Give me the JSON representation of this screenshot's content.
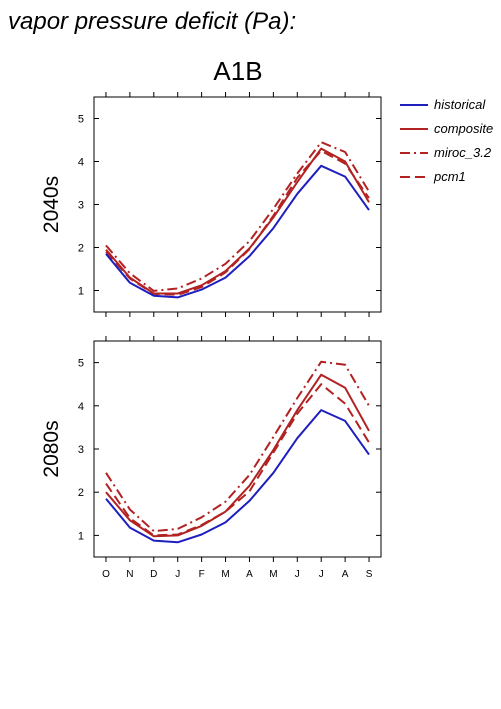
{
  "figure": {
    "title": "vapor pressure deficit (Pa):"
  },
  "chart_data": {
    "type": "line",
    "title": "A1B",
    "months": [
      "O",
      "N",
      "D",
      "J",
      "F",
      "M",
      "A",
      "M",
      "J",
      "J",
      "A",
      "S"
    ],
    "ylim": [
      0.5,
      5.5
    ],
    "yticks": [
      1,
      2,
      3,
      4,
      5
    ],
    "legend": {
      "placement": "top-right-outside",
      "entries": [
        {
          "name": "historical",
          "color": "#1f1fbf",
          "dash": "solid"
        },
        {
          "name": "composite",
          "color": "#b22222",
          "dash": "solid"
        },
        {
          "name": "miroc_3.2",
          "color": "#b22222",
          "dash": "dashdot"
        },
        {
          "name": "pcm1",
          "color": "#b22222",
          "dash": "dashed"
        }
      ]
    },
    "panels": [
      {
        "label": "2040s",
        "series": [
          {
            "name": "historical",
            "values": [
              1.85,
              1.18,
              0.88,
              0.84,
              1.02,
              1.3,
              1.8,
              2.45,
              3.25,
              3.9,
              3.65,
              2.87
            ]
          },
          {
            "name": "composite",
            "values": [
              1.95,
              1.3,
              0.93,
              0.93,
              1.12,
              1.45,
              1.98,
              2.7,
              3.52,
              4.3,
              4.0,
              3.05
            ]
          },
          {
            "name": "miroc_3.2",
            "values": [
              2.05,
              1.4,
              0.99,
              1.05,
              1.28,
              1.62,
              2.15,
              2.9,
              3.72,
              4.45,
              4.22,
              3.3
            ]
          },
          {
            "name": "pcm1",
            "values": [
              1.9,
              1.28,
              0.92,
              0.9,
              1.08,
              1.42,
              1.96,
              2.74,
              3.62,
              4.25,
              3.95,
              3.15
            ]
          }
        ]
      },
      {
        "label": "2080s",
        "series": [
          {
            "name": "historical",
            "values": [
              1.85,
              1.18,
              0.88,
              0.84,
              1.02,
              1.3,
              1.8,
              2.45,
              3.25,
              3.9,
              3.65,
              2.87
            ]
          },
          {
            "name": "composite",
            "values": [
              2.0,
              1.35,
              0.98,
              1.0,
              1.22,
              1.55,
              2.15,
              2.98,
              3.9,
              4.72,
              4.42,
              3.42
            ]
          },
          {
            "name": "miroc_3.2",
            "values": [
              2.45,
              1.6,
              1.1,
              1.15,
              1.42,
              1.78,
              2.4,
              3.28,
              4.18,
              5.02,
              4.95,
              4.0
            ]
          },
          {
            "name": "pcm1",
            "values": [
              2.2,
              1.4,
              1.0,
              1.02,
              1.24,
              1.55,
              2.02,
              2.92,
              3.82,
              4.5,
              4.05,
              3.15
            ]
          }
        ]
      }
    ]
  }
}
